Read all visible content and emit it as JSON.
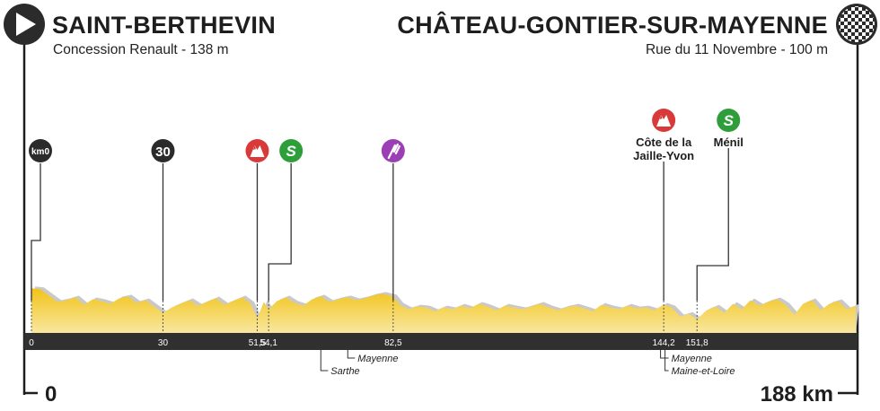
{
  "start": {
    "town": "SAINT-BERTHEVIN",
    "detail": "Concession Renault - 138 m",
    "distance_label": "0",
    "icon": "play-icon"
  },
  "finish": {
    "town": "CHÂTEAU-GONTIER-SUR-MAYENNE",
    "detail": "Rue du 11 Novembre - 100 m",
    "distance_label": "188 km",
    "icon": "checkered-flag-icon"
  },
  "points": [
    {
      "km": 0,
      "km_label": "0",
      "type": "km0",
      "badge": "km0",
      "color": "#2b2b2b"
    },
    {
      "km": 30,
      "km_label": "30",
      "type": "km-marker",
      "badge": "30",
      "color": "#2b2b2b"
    },
    {
      "km": 51.5,
      "km_label": "51,5",
      "type": "climb",
      "icon": "mountain-icon",
      "color": "#d83a3a"
    },
    {
      "km": 54.1,
      "km_label": "54,1",
      "type": "sprint",
      "icon": "sprint-icon",
      "color": "#2e9e3a"
    },
    {
      "km": 82.5,
      "km_label": "82,5",
      "type": "feed",
      "icon": "feed-zone-icon",
      "color": "#9b3fb5"
    },
    {
      "km": 144.2,
      "km_label": "144,2",
      "type": "climb",
      "icon": "mountain-icon",
      "color": "#d83a3a",
      "label_lines": [
        "Côte de la",
        "Jaille-Yvon"
      ]
    },
    {
      "km": 151.8,
      "km_label": "151,8",
      "type": "sprint",
      "icon": "sprint-icon",
      "color": "#2e9e3a",
      "label_lines": [
        "Ménil"
      ]
    }
  ],
  "departments": [
    {
      "km": 66,
      "upper": "Mayenne",
      "lower": "Sarthe"
    },
    {
      "km": 144.5,
      "upper": "Mayenne",
      "lower": "Maine-et-Loire"
    }
  ],
  "colors": {
    "profile_fill": "#f2c318",
    "profile_fill_light": "#f8e7a0",
    "profile_shadow": "#c9c9c9",
    "bar": "#303030",
    "axis": "#1e1e1e"
  },
  "chart_data": {
    "type": "area",
    "x_unit": "km",
    "y_unit": "m",
    "x_range": [
      0,
      188
    ],
    "y_range": [
      40,
      180
    ],
    "x": [
      0,
      2,
      4,
      6,
      8,
      10,
      12,
      14,
      16,
      18,
      20,
      22,
      24,
      26,
      28,
      30,
      32,
      34,
      36,
      38,
      40,
      42,
      44,
      46,
      48,
      50,
      51.5,
      53,
      54.1,
      56,
      58,
      60,
      62,
      64,
      66,
      68,
      70,
      72,
      74,
      76,
      78,
      80,
      82.5,
      84,
      86,
      88,
      90,
      92,
      94,
      96,
      98,
      100,
      102,
      104,
      106,
      108,
      110,
      112,
      114,
      116,
      118,
      120,
      122,
      124,
      126,
      128,
      130,
      132,
      134,
      136,
      138,
      140,
      142,
      144.2,
      146,
      148,
      150,
      151.8,
      154,
      156,
      158,
      160,
      162,
      164,
      166,
      168,
      170,
      172,
      174,
      176,
      178,
      180,
      182,
      184,
      186,
      188
    ],
    "y": [
      138,
      136,
      122,
      108,
      112,
      118,
      102,
      114,
      110,
      104,
      116,
      120,
      106,
      112,
      98,
      84,
      96,
      104,
      112,
      100,
      108,
      116,
      102,
      110,
      118,
      104,
      72,
      108,
      92,
      110,
      118,
      106,
      100,
      114,
      120,
      108,
      114,
      118,
      112,
      116,
      122,
      126,
      120,
      102,
      92,
      98,
      96,
      88,
      96,
      92,
      100,
      94,
      104,
      98,
      90,
      100,
      96,
      92,
      98,
      104,
      96,
      90,
      96,
      100,
      94,
      88,
      102,
      96,
      92,
      100,
      94,
      96,
      90,
      102,
      96,
      76,
      82,
      70,
      90,
      98,
      84,
      104,
      92,
      112,
      100,
      108,
      114,
      102,
      80,
      104,
      112,
      90,
      104,
      110,
      92,
      100
    ]
  }
}
